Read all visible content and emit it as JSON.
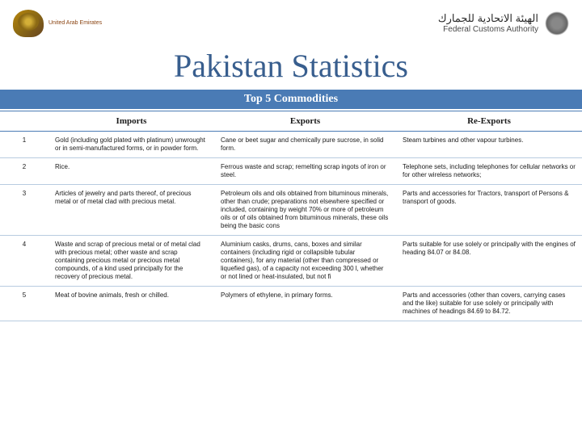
{
  "header": {
    "left_logo_caption": "United Arab Emirates",
    "fca_arabic": "الهيئة الاتحادية للجمارك",
    "fca_english": "Federal Customs Authority"
  },
  "title": "Pakistan Statistics",
  "subtitle": "Top 5 Commodities",
  "columns": {
    "num": "",
    "imports": "Imports",
    "exports": "Exports",
    "reexports": "Re-Exports"
  },
  "rows": [
    {
      "n": "1",
      "imports": "Gold (including gold plated with platinum) unwrought or in semi-manufactured forms, or in powder form.",
      "exports": "Cane or beet sugar and chemically pure sucrose, in solid form.",
      "reexports": "Steam turbines and other vapour turbines."
    },
    {
      "n": "2",
      "imports": "Rice.",
      "exports": "Ferrous waste and scrap; remelting scrap ingots of iron or steel.",
      "reexports": "Telephone sets, including telephones for cellular networks or for other wireless networks;"
    },
    {
      "n": "3",
      "imports": "Articles of jewelry and parts thereof, of precious metal or of metal clad with precious metal.",
      "exports": "Petroleum oils and oils obtained from bituminous minerals, other than crude; preparations not elsewhere specified or included, containing by weight 70% or more of petroleum oils or of oils obtained from bituminous minerals, these oils being the basic cons",
      "reexports": "Parts and accessories for Tractors, transport of Persons & transport of goods."
    },
    {
      "n": "4",
      "imports": "Waste and scrap of precious metal or of metal clad with precious metal; other waste and scrap containing precious metal or precious metal compounds, of a kind used principally for the recovery of precious metal.",
      "exports": "Aluminium casks, drums, cans, boxes and similar containers (including rigid or collapsible tubular containers), for any material (other than compressed or liquefied gas), of a capacity not exceeding 300 l, whether or not lined or heat-insulated, but not fi",
      "reexports": "Parts suitable for use solely or principally with the engines of heading 84.07 or 84.08."
    },
    {
      "n": "5",
      "imports": "Meat of bovine animals, fresh or chilled.",
      "exports": "Polymers of ethylene, in primary forms.",
      "reexports": "Parts and accessories (other than covers, carrying cases and the like) suitable for use solely or principally with machines of headings 84.69 to 84.72."
    }
  ],
  "colors": {
    "title": "#385e8e",
    "bar_bg": "#4a7bb5",
    "row_border": "#b8cce0"
  }
}
